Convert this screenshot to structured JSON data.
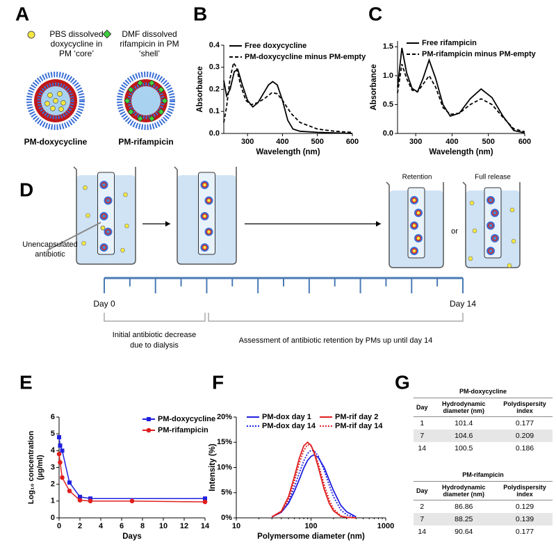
{
  "panel_labels": [
    "A",
    "B",
    "C",
    "D",
    "E",
    "F",
    "G"
  ],
  "panel_a": {
    "legend_core": [
      "PBS dissolved",
      "doxycycline in",
      "PM ‘core’"
    ],
    "legend_shell": [
      "DMF dissolved",
      "rifampicin in PM",
      "‘shell’"
    ],
    "caption_core": "PM-doxycycline",
    "caption_shell": "PM-rifampicin"
  },
  "panel_d": {
    "unencapsulated": [
      "Unencapsulated",
      "antibiotic"
    ],
    "retention": "Retention",
    "full_release": "Full release",
    "or": "or",
    "day_start": "Day 0",
    "day_end": "Day 14",
    "phase1": [
      "Initial antibiotic decrease",
      "due to dialysis"
    ],
    "phase2": "Assessment of antibiotic retention by PMs up until day 14"
  },
  "chart_data": [
    {
      "type": "line",
      "xlabel": "Wavelength (nm)",
      "ylabel": "Absorbance",
      "xlim": [
        232,
        600
      ],
      "ylim": [
        0,
        0.4
      ],
      "xticks": [
        300,
        400,
        500,
        600
      ],
      "yticks": [
        {
          "value": 0,
          "label": "0.0"
        },
        0.1,
        0.2,
        0.3,
        0.4
      ],
      "series": [
        {
          "name": "Free doxycycline",
          "color": "#000000",
          "line_style": "solid",
          "x": [
            232,
            240,
            250,
            262,
            272,
            285,
            300,
            315,
            330,
            345,
            360,
            372,
            385,
            400,
            415,
            430,
            450,
            500,
            600
          ],
          "values": [
            0.24,
            0.17,
            0.2,
            0.28,
            0.29,
            0.22,
            0.15,
            0.12,
            0.14,
            0.18,
            0.22,
            0.235,
            0.22,
            0.15,
            0.06,
            0.02,
            0.01,
            0.005,
            0
          ]
        },
        {
          "name": "PM-doxycycline minus PM-empty",
          "color": "#000000",
          "line_style": "dashed",
          "x": [
            232,
            240,
            250,
            260,
            268,
            280,
            295,
            310,
            330,
            350,
            370,
            385,
            400,
            425,
            450,
            500,
            550,
            600
          ],
          "values": [
            0.05,
            0.12,
            0.25,
            0.32,
            0.3,
            0.22,
            0.15,
            0.13,
            0.14,
            0.16,
            0.185,
            0.18,
            0.15,
            0.09,
            0.05,
            0.02,
            0.01,
            0.005
          ]
        }
      ]
    },
    {
      "type": "line",
      "xlabel": "Wavelength (nm)",
      "ylabel": "Absorbance",
      "xlim": [
        250,
        600
      ],
      "ylim": [
        0,
        1.6
      ],
      "xticks": [
        300,
        400,
        500,
        600
      ],
      "yticks": [
        {
          "value": 0,
          "label": "0.0"
        },
        0.5,
        {
          "value": 1,
          "label": "1.0"
        },
        1.5
      ],
      "series": [
        {
          "name": "Free rifampicin",
          "color": "#000000",
          "line_style": "solid",
          "x": [
            250,
            262,
            275,
            290,
            305,
            320,
            337,
            355,
            375,
            395,
            420,
            450,
            480,
            510,
            540,
            570,
            600
          ],
          "values": [
            0.8,
            1.48,
            1.05,
            0.78,
            0.72,
            0.95,
            1.27,
            0.95,
            0.5,
            0.3,
            0.35,
            0.6,
            0.77,
            0.62,
            0.3,
            0.05,
            0.01
          ]
        },
        {
          "name": "PM-rifampicin minus PM-empty",
          "color": "#000000",
          "line_style": "dashed",
          "x": [
            250,
            262,
            275,
            290,
            305,
            320,
            337,
            355,
            375,
            395,
            420,
            450,
            480,
            510,
            540,
            570,
            600
          ],
          "values": [
            0.7,
            1.2,
            0.95,
            0.75,
            0.72,
            0.85,
            1.0,
            0.8,
            0.45,
            0.33,
            0.35,
            0.5,
            0.6,
            0.5,
            0.28,
            0.08,
            0.03
          ]
        }
      ]
    },
    {
      "type": "line",
      "xlabel": "Days",
      "ylabel": "Log₁₀ concentration",
      "ylabel_unit": "(µg/ml)",
      "xlim": [
        0,
        14
      ],
      "ylim": [
        0,
        6
      ],
      "xticks": [
        0,
        2,
        4,
        6,
        8,
        10,
        12,
        14
      ],
      "yticks": [
        0,
        1,
        2,
        3,
        4,
        5,
        6
      ],
      "series": [
        {
          "name": "PM-doxycycline",
          "color": "#1f1fe0",
          "line_style": "solid",
          "marker": "square",
          "x": [
            0,
            0.1,
            0.3,
            1,
            2,
            3,
            14
          ],
          "values": [
            4.8,
            4.3,
            4.0,
            2.1,
            1.25,
            1.15,
            1.15
          ]
        },
        {
          "name": "PM-rifampicin",
          "color": "#e01f1f",
          "line_style": "solid",
          "marker": "circle",
          "x": [
            0,
            0.1,
            0.3,
            1,
            2,
            3,
            7,
            14
          ],
          "values": [
            3.8,
            3.3,
            2.4,
            1.6,
            1.05,
            1.0,
            1.0,
            0.95
          ]
        }
      ]
    },
    {
      "type": "line",
      "xlabel": "Polymersome diameter (nm)",
      "ylabel": "Intensity (%)",
      "xlim": [
        10,
        1000
      ],
      "ylim": [
        0,
        20
      ],
      "xlog": true,
      "xticks": [
        10,
        100,
        1000
      ],
      "yticks": [
        {
          "value": 0,
          "label": "0%"
        },
        {
          "value": 5,
          "label": "5%"
        },
        {
          "value": 10,
          "label": "10%"
        },
        {
          "value": 15,
          "label": "15%"
        },
        {
          "value": 20,
          "label": "20%"
        }
      ],
      "series": [
        {
          "name": "PM-dox day 1",
          "color": "#1f1fe0",
          "line_style": "solid",
          "x": [
            30,
            40,
            50,
            60,
            70,
            80,
            90,
            100,
            110,
            125,
            150,
            175,
            200,
            250,
            300,
            400
          ],
          "values": [
            0.2,
            1.1,
            2.9,
            5.3,
            7.7,
            9.9,
            11.4,
            12.2,
            12.5,
            12.0,
            10.0,
            7.5,
            5.4,
            2.5,
            1.2,
            0.2
          ]
        },
        {
          "name": "PM-dox day 14",
          "color": "#1f1fe0",
          "line_style": "dotted",
          "x": [
            30,
            40,
            50,
            60,
            70,
            80,
            90,
            100,
            110,
            125,
            150,
            175,
            200,
            250,
            300,
            400
          ],
          "values": [
            0.2,
            1.2,
            3.3,
            6.2,
            9.0,
            11.3,
            12.8,
            13.4,
            13.3,
            12.3,
            9.4,
            6.5,
            4.2,
            1.6,
            0.6,
            0.1
          ]
        },
        {
          "name": "PM-rif day 2",
          "color": "#e01f1f",
          "line_style": "solid",
          "x": [
            30,
            40,
            50,
            60,
            70,
            80,
            90,
            100,
            110,
            125,
            150,
            175,
            200,
            250,
            300,
            400
          ],
          "values": [
            0.2,
            1.3,
            4.2,
            8.2,
            11.9,
            14.3,
            15,
            14.4,
            12.9,
            10.1,
            5.7,
            2.9,
            1.4,
            0.3,
            0.1,
            0
          ]
        },
        {
          "name": "PM-rif day 14",
          "color": "#e01f1f",
          "line_style": "dotted",
          "x": [
            30,
            40,
            50,
            60,
            70,
            80,
            90,
            100,
            110,
            125,
            150,
            175,
            200,
            250,
            300,
            400
          ],
          "values": [
            0.2,
            1.1,
            3.6,
            7.3,
            10.9,
            13.4,
            14.5,
            14.3,
            13.2,
            10.8,
            6.6,
            3.6,
            1.8,
            0.4,
            0.1,
            0
          ]
        }
      ]
    }
  ],
  "table": [
    {
      "title": "PM-doxycycline",
      "header": [
        "Day",
        "Hydrodynamic diameter (nm)",
        "Polydispersity index"
      ],
      "rows": [
        [
          1,
          101.4,
          0.177
        ],
        [
          7,
          104.6,
          0.209
        ],
        [
          14,
          100.5,
          0.186
        ]
      ]
    },
    {
      "title": "PM-rifampicin",
      "header": [
        "Day",
        "Hydrodynamic diameter (nm)",
        "Polydispersity index"
      ],
      "rows": [
        [
          2,
          86.86,
          0.129
        ],
        [
          7,
          88.25,
          0.139
        ],
        [
          14,
          90.64,
          0.177
        ]
      ]
    }
  ]
}
